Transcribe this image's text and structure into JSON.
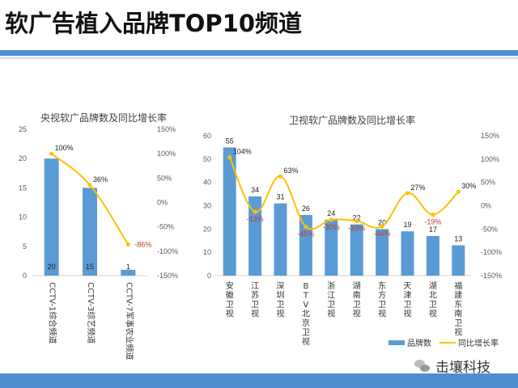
{
  "page": {
    "title": "软广告植入品牌TOP10频道",
    "brand": "击壤科技"
  },
  "colors": {
    "bar": "#5b9bd5",
    "line": "#ffc000",
    "accent": "#4f8ed0"
  },
  "icons": {
    "brand": "wechat-icon"
  },
  "chart_data": [
    {
      "type": "bar",
      "title": "央视软广品牌数及同比增长率",
      "categories": [
        "CCTV-1综合频道",
        "CCTV-3综艺频道",
        "CCTV-7军事农业频道"
      ],
      "series": [
        {
          "name": "品牌数",
          "type": "bar",
          "axis": "left",
          "values": [
            20,
            15,
            1
          ]
        },
        {
          "name": "同比增长率",
          "type": "line",
          "axis": "right",
          "values": [
            100,
            36,
            -86
          ]
        }
      ],
      "y_left": {
        "lim": [
          0,
          25
        ],
        "ticks": [
          "0",
          "5",
          "10",
          "15",
          "20",
          "25"
        ]
      },
      "y_right": {
        "lim": [
          -150,
          150
        ],
        "ticks": [
          "-150%",
          "-100%",
          "-50%",
          "0%",
          "50%",
          "100%",
          "150%"
        ]
      },
      "bar_labels": [
        "20",
        "15",
        "1"
      ],
      "line_labels": [
        "100%",
        "36%",
        "-86%"
      ]
    },
    {
      "type": "bar",
      "title": "卫视软广品牌数及同比增长率",
      "categories": [
        "安徽卫视",
        "江苏卫视",
        "深圳卫视",
        "BTV北京卫视",
        "浙江卫视",
        "湖南卫视",
        "东方卫视",
        "天津卫视",
        "湖北卫视",
        "福建东南卫视"
      ],
      "series": [
        {
          "name": "品牌数",
          "type": "bar",
          "axis": "left",
          "values": [
            55,
            34,
            31,
            26,
            24,
            22,
            20,
            19,
            17,
            13
          ]
        },
        {
          "name": "同比增长率",
          "type": "line",
          "axis": "right",
          "values": [
            104,
            -13,
            63,
            -45,
            -30,
            -33,
            -44,
            27,
            -19,
            30
          ]
        }
      ],
      "y_left": {
        "lim": [
          0,
          60
        ],
        "ticks": [
          "0",
          "10",
          "20",
          "30",
          "40",
          "50",
          "60"
        ]
      },
      "y_right": {
        "lim": [
          -150,
          150
        ],
        "ticks": [
          "-150%",
          "-100%",
          "-50%",
          "0%",
          "50%",
          "100%",
          "150%"
        ]
      },
      "bar_labels": [
        "55",
        "34",
        "31",
        "26",
        "24",
        "22",
        "20",
        "19",
        "17",
        "13"
      ],
      "line_labels": [
        "104%",
        "-13%",
        "63%",
        "-45%",
        "-30%",
        "-33%",
        "-44%",
        "27%",
        "-19%",
        "30%"
      ],
      "legend": [
        "品牌数",
        "同比增长率"
      ],
      "legend_position": "bottom-right"
    }
  ]
}
